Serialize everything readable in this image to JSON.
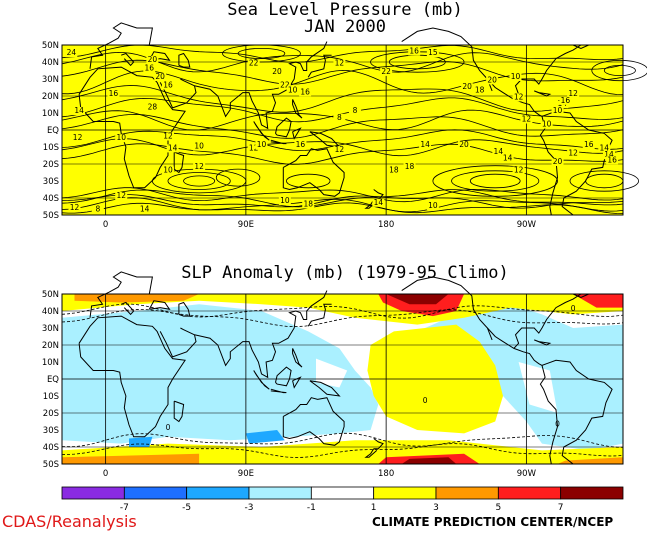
{
  "top_panel": {
    "title": "Sea Level Pressure (mb)",
    "subtitle": "JAN 2000",
    "lat_labels": [
      "50N",
      "40N",
      "30N",
      "20N",
      "10N",
      "EQ",
      "10S",
      "20S",
      "30S",
      "40S",
      "50S"
    ],
    "lon_labels": [
      "0",
      "90E",
      "180",
      "90W",
      "0"
    ],
    "contour_labels": [
      "24",
      "20",
      "16",
      "20",
      "16",
      "16",
      "28",
      "14",
      "22",
      "20",
      "22",
      "10",
      "16",
      "12",
      "22",
      "16",
      "15",
      "20",
      "18",
      "20",
      "10",
      "12",
      "14",
      "12",
      "16",
      "10",
      "12",
      "10",
      "8",
      "8",
      "12",
      "10",
      "12",
      "14",
      "10",
      "12",
      "10",
      "16",
      "12",
      "18",
      "18",
      "14",
      "20",
      "14",
      "14",
      "12",
      "20",
      "12",
      "16",
      "14",
      "14",
      "16",
      "12",
      "10",
      "12",
      "14",
      "12",
      "8",
      "10",
      "18",
      "14",
      "10"
    ],
    "fill_color": "#ffff00"
  },
  "bottom_panel": {
    "title": "SLP Anomaly (mb) (1979-95 Climo)",
    "lat_labels": [
      "50N",
      "40N",
      "30N",
      "20N",
      "10N",
      "EQ",
      "10S",
      "20S",
      "30S",
      "40S",
      "50S"
    ],
    "lon_labels": [
      "0",
      "90E",
      "180",
      "90W",
      "0"
    ],
    "contour_labels": [
      "0",
      "0",
      "0",
      "0"
    ]
  },
  "colorbar": {
    "colors": [
      "#8a2be2",
      "#1e6fff",
      "#1ea8ff",
      "#aaf0ff",
      "#ffffff",
      "#ffff00",
      "#ff9900",
      "#ff1e1e",
      "#8b0000"
    ],
    "tick_labels": [
      "-7",
      "-5",
      "-3",
      "-1",
      "1",
      "3",
      "5",
      "7"
    ]
  },
  "footer": {
    "left": "CDAS/Reanalysis",
    "right": "CLIMATE PREDICTION CENTER/NCEP"
  }
}
